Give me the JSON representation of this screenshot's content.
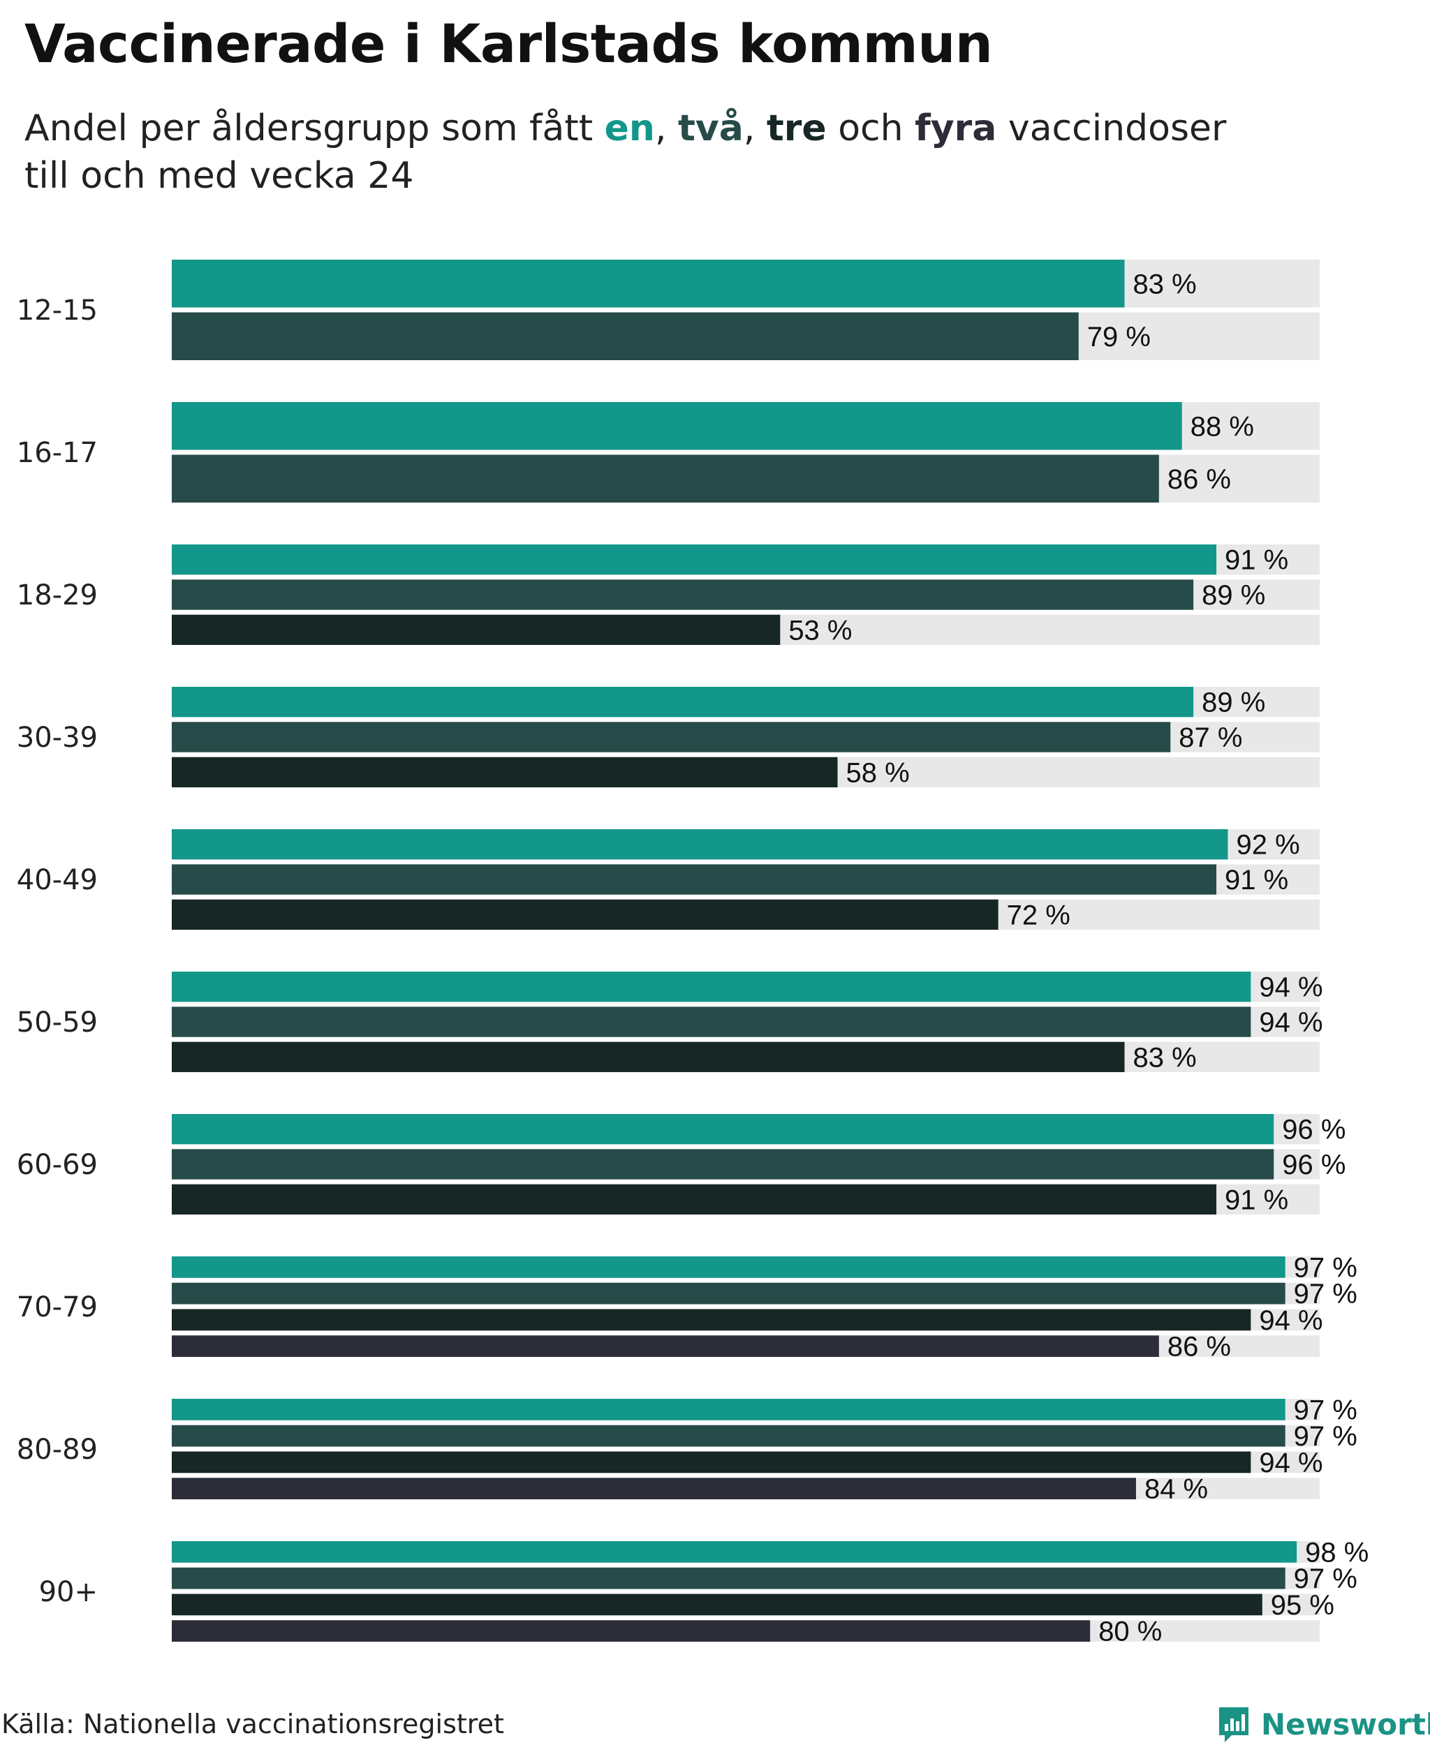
{
  "title": "Vaccinerade i Karlstads kommun",
  "subtitle": {
    "prefix": "Andel per åldersgrupp som fått ",
    "k1": "en",
    "sep1": ", ",
    "k2": "två",
    "sep2": ", ",
    "k3": "tre",
    "sep3": " och ",
    "k4": "fyra",
    "suffix_line1": " vaccindoser",
    "line2": "till och med vecka 24"
  },
  "source": "Källa: Nationella vaccinationsregistret",
  "logo": {
    "icon": "newsworthy-logo-icon",
    "text": "Newsworthy"
  },
  "colors": {
    "dose1": "#12978a",
    "dose2": "#264b48",
    "dose3": "#172726",
    "dose4": "#2d2d3a",
    "track": "#e8e8e8",
    "logo": "#1a9385"
  },
  "chart_data": {
    "type": "bar",
    "orientation": "horizontal",
    "title": "Vaccinerade i Karlstads kommun",
    "xlim": [
      0,
      100
    ],
    "value_suffix": " %",
    "categories": [
      "12-15",
      "16-17",
      "18-29",
      "30-39",
      "40-49",
      "50-59",
      "60-69",
      "70-79",
      "80-89",
      "90+"
    ],
    "series": [
      {
        "name": "en",
        "values": [
          83,
          88,
          91,
          89,
          92,
          94,
          96,
          97,
          97,
          98
        ]
      },
      {
        "name": "två",
        "values": [
          79,
          86,
          89,
          87,
          91,
          94,
          96,
          97,
          97,
          97
        ]
      },
      {
        "name": "tre",
        "values": [
          null,
          null,
          53,
          58,
          72,
          83,
          91,
          94,
          94,
          95
        ]
      },
      {
        "name": "fyra",
        "values": [
          null,
          null,
          null,
          null,
          null,
          null,
          null,
          86,
          84,
          80
        ]
      }
    ]
  }
}
